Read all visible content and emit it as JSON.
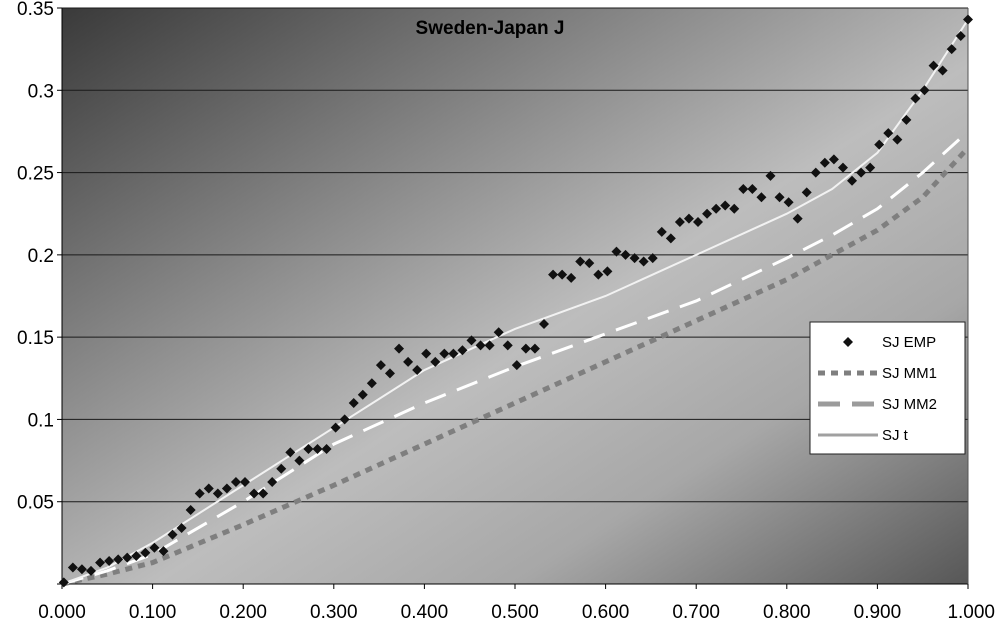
{
  "chart_data": {
    "type": "line",
    "title": "Sweden-Japan J",
    "xlabel": "",
    "ylabel": "",
    "xlim": [
      0,
      1
    ],
    "ylim": [
      0,
      0.35
    ],
    "grid": "horizontal",
    "legend_position": "right",
    "x_ticks": [
      "0.000",
      "0.100",
      "0.200",
      "0.300",
      "0.400",
      "0.500",
      "0.600",
      "0.700",
      "0.800",
      "0.900",
      "1.000"
    ],
    "y_ticks": [
      "",
      "0.05",
      "0.1",
      "0.15",
      "0.2",
      "0.25",
      "0.3",
      "0.35"
    ],
    "series": [
      {
        "name": "SJ EMP",
        "kind": "scatter",
        "color": "#111111",
        "x": [
          0.002,
          0.012,
          0.022,
          0.032,
          0.042,
          0.052,
          0.062,
          0.072,
          0.082,
          0.092,
          0.102,
          0.112,
          0.122,
          0.132,
          0.142,
          0.152,
          0.162,
          0.172,
          0.182,
          0.192,
          0.202,
          0.212,
          0.222,
          0.232,
          0.242,
          0.252,
          0.262,
          0.272,
          0.282,
          0.292,
          0.302,
          0.312,
          0.322,
          0.332,
          0.342,
          0.352,
          0.362,
          0.372,
          0.382,
          0.392,
          0.402,
          0.412,
          0.422,
          0.432,
          0.442,
          0.452,
          0.462,
          0.472,
          0.482,
          0.492,
          0.502,
          0.512,
          0.522,
          0.532,
          0.542,
          0.552,
          0.562,
          0.572,
          0.582,
          0.592,
          0.602,
          0.612,
          0.622,
          0.632,
          0.642,
          0.652,
          0.662,
          0.672,
          0.682,
          0.692,
          0.702,
          0.712,
          0.722,
          0.732,
          0.742,
          0.752,
          0.762,
          0.772,
          0.782,
          0.792,
          0.802,
          0.812,
          0.822,
          0.832,
          0.842,
          0.852,
          0.862,
          0.872,
          0.882,
          0.892,
          0.902,
          0.912,
          0.922,
          0.932,
          0.942,
          0.952,
          0.962,
          0.972,
          0.982,
          0.992,
          1.0
        ],
        "y": [
          0.001,
          0.01,
          0.009,
          0.008,
          0.013,
          0.014,
          0.015,
          0.016,
          0.017,
          0.019,
          0.022,
          0.02,
          0.03,
          0.034,
          0.045,
          0.055,
          0.058,
          0.055,
          0.058,
          0.062,
          0.062,
          0.055,
          0.055,
          0.062,
          0.07,
          0.08,
          0.075,
          0.082,
          0.082,
          0.082,
          0.095,
          0.1,
          0.11,
          0.115,
          0.122,
          0.133,
          0.128,
          0.143,
          0.135,
          0.13,
          0.14,
          0.135,
          0.14,
          0.14,
          0.142,
          0.148,
          0.145,
          0.145,
          0.153,
          0.145,
          0.133,
          0.143,
          0.143,
          0.158,
          0.188,
          0.188,
          0.186,
          0.196,
          0.195,
          0.188,
          0.19,
          0.202,
          0.2,
          0.198,
          0.196,
          0.198,
          0.214,
          0.21,
          0.22,
          0.222,
          0.22,
          0.225,
          0.228,
          0.23,
          0.228,
          0.24,
          0.24,
          0.235,
          0.248,
          0.235,
          0.232,
          0.222,
          0.238,
          0.25,
          0.256,
          0.258,
          0.253,
          0.245,
          0.25,
          0.253,
          0.267,
          0.274,
          0.27,
          0.282,
          0.295,
          0.3,
          0.315,
          0.312,
          0.325,
          0.333,
          0.343
        ]
      },
      {
        "name": "SJ MM1",
        "kind": "dotted",
        "color": "#7f7f7f",
        "x": [
          0,
          0.05,
          0.1,
          0.2,
          0.3,
          0.4,
          0.5,
          0.6,
          0.7,
          0.8,
          0.85,
          0.9,
          0.95,
          1.0
        ],
        "y": [
          0,
          0.006,
          0.013,
          0.036,
          0.06,
          0.085,
          0.11,
          0.135,
          0.16,
          0.185,
          0.2,
          0.215,
          0.235,
          0.265
        ]
      },
      {
        "name": "SJ MM2",
        "kind": "dashed",
        "color": "#ffffff",
        "x": [
          0,
          0.05,
          0.1,
          0.2,
          0.3,
          0.4,
          0.5,
          0.6,
          0.7,
          0.8,
          0.85,
          0.9,
          0.95,
          1.0
        ],
        "y": [
          0,
          0.008,
          0.018,
          0.05,
          0.085,
          0.11,
          0.132,
          0.152,
          0.172,
          0.198,
          0.212,
          0.228,
          0.25,
          0.275
        ]
      },
      {
        "name": "SJ t",
        "kind": "solid",
        "color": "#f2f2f2",
        "x": [
          0,
          0.05,
          0.1,
          0.2,
          0.3,
          0.4,
          0.5,
          0.6,
          0.7,
          0.8,
          0.85,
          0.9,
          0.95,
          1.0
        ],
        "y": [
          0,
          0.01,
          0.025,
          0.06,
          0.095,
          0.13,
          0.155,
          0.175,
          0.2,
          0.225,
          0.24,
          0.262,
          0.3,
          0.343
        ]
      }
    ]
  }
}
